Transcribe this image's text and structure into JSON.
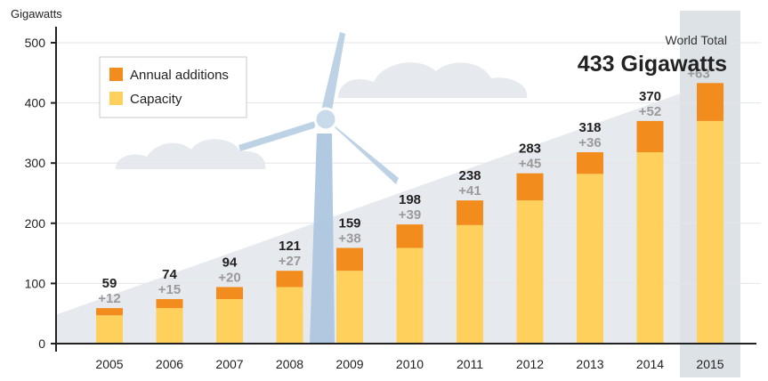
{
  "colors": {
    "capacity": "#FFD15C",
    "annual_additions": "#F28C1C",
    "axis": "#222222",
    "grid": "#e3e6ea",
    "highlight": "#dde2e7",
    "turbine": "#b7cde3",
    "cloud": "#e6eaee"
  },
  "icons": [
    "wind-turbine-icon",
    "cloud-icon"
  ],
  "chart_data": {
    "type": "bar",
    "stacked": true,
    "categories": [
      "2005",
      "2006",
      "2007",
      "2008",
      "2009",
      "2010",
      "2011",
      "2012",
      "2013",
      "2014",
      "2015"
    ],
    "series": [
      {
        "name": "Capacity",
        "values": [
          47,
          59,
          74,
          94,
          121,
          159,
          197,
          238,
          282,
          318,
          370
        ]
      },
      {
        "name": "Annual additions",
        "values": [
          12,
          15,
          20,
          27,
          38,
          39,
          41,
          45,
          36,
          52,
          63
        ]
      }
    ],
    "total_labels": [
      "59",
      "74",
      "94",
      "121",
      "159",
      "198",
      "238",
      "283",
      "318",
      "370",
      ""
    ],
    "addition_labels": [
      "+12",
      "+15",
      "+20",
      "+27",
      "+38",
      "+39",
      "+41",
      "+45",
      "+36",
      "+52",
      "+63"
    ],
    "highlight_category": "2015",
    "ylabel": "Gigawatts",
    "ylim": [
      0,
      500
    ],
    "yticks": [
      0,
      100,
      200,
      300,
      400,
      500
    ],
    "grid": true,
    "legend_position": "top-left",
    "annotation": {
      "label": "World Total",
      "value": "433 Gigawatts"
    }
  }
}
